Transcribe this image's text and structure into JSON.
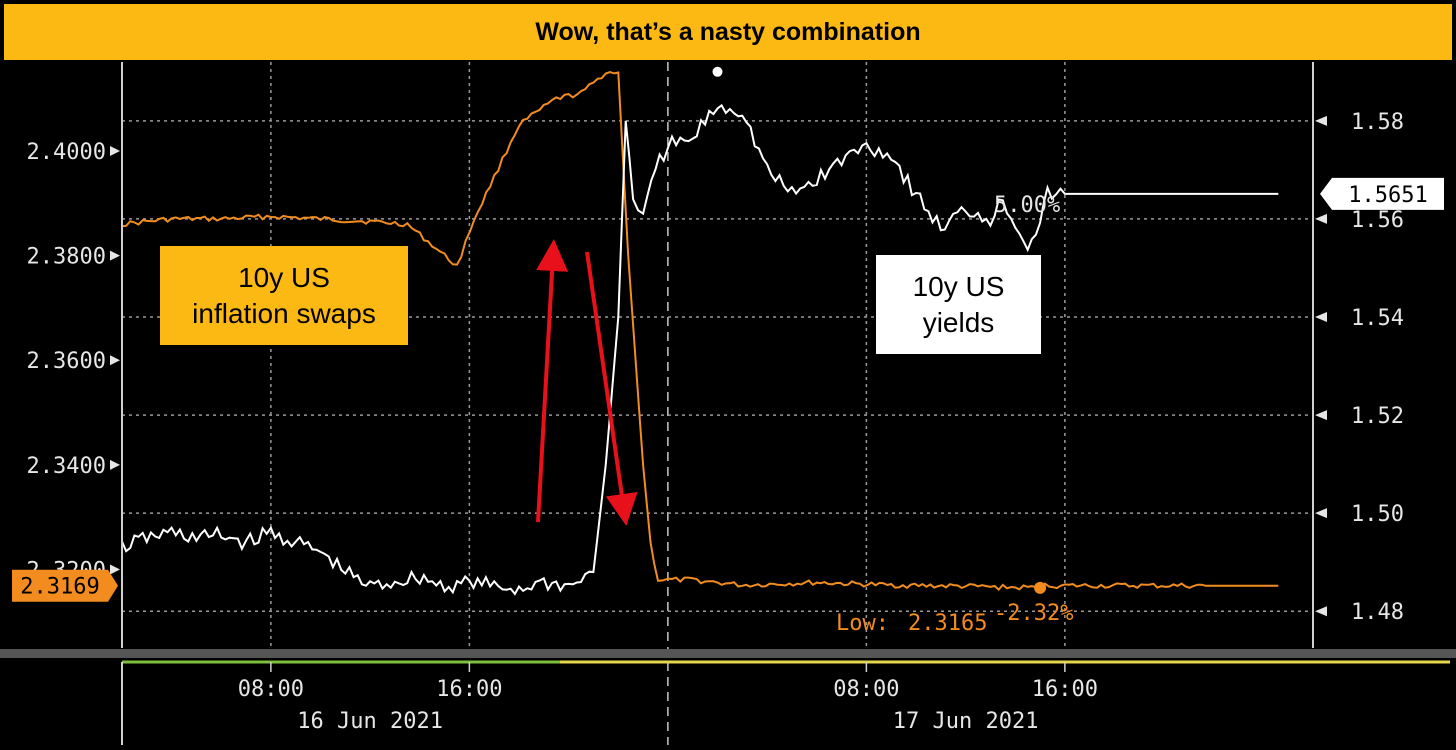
{
  "title": "Wow, that’s a nasty combination",
  "colors": {
    "title_bg": "#fdb913",
    "swaps": "#f28c1e",
    "yields": "#ffffff",
    "arrows": "#e8101b",
    "grid": "#9a9a9a"
  },
  "callouts": {
    "swaps": {
      "line1": "10y US",
      "line2": "inflation swaps"
    },
    "yields": {
      "line1": "10y US",
      "line2": "yields"
    }
  },
  "chart_data": {
    "type": "line",
    "title": "Wow, that’s a nasty combination",
    "x_unit": "hours since 16 Jun 2021 00:00",
    "x_ticks": [
      {
        "x": 8,
        "time": "08:00"
      },
      {
        "x": 16,
        "time": "16:00"
      },
      {
        "x": 32,
        "time": "08:00"
      },
      {
        "x": 40,
        "time": "16:00"
      }
    ],
    "date_labels": [
      {
        "x": 12,
        "label": "16 Jun 2021"
      },
      {
        "x": 36,
        "label": "17 Jun 2021"
      }
    ],
    "day_divider_x": 24,
    "xlim": [
      2,
      50
    ],
    "left_axis": {
      "label": "10y US inflation swaps",
      "ylim": [
        2.305,
        2.417
      ],
      "ticks": [
        "2.4000",
        "2.3800",
        "2.3600",
        "2.3400",
        "2.3200"
      ],
      "tick_values": [
        2.4,
        2.38,
        2.36,
        2.34,
        2.32
      ],
      "last_value_label": "2.3169",
      "last_value": 2.3169
    },
    "right_axis": {
      "label": "10y US yields",
      "ylim": [
        1.4725,
        1.592
      ],
      "ticks": [
        "1.58",
        "1.56",
        "1.54",
        "1.52",
        "1.50",
        "1.48"
      ],
      "tick_values": [
        1.58,
        1.56,
        1.54,
        1.52,
        1.5,
        1.48
      ],
      "last_value_label": "1.5651",
      "last_value": 1.5651
    },
    "series": [
      {
        "name": "10y US inflation swaps",
        "axis": "left",
        "x": [
          2,
          4,
          6,
          8,
          10,
          12,
          13.5,
          14.5,
          15.5,
          16.2,
          17,
          18,
          19.5,
          20.5,
          21.5,
          22,
          22.4,
          22.7,
          23,
          23.3,
          23.6,
          24,
          25,
          27,
          30,
          33,
          36,
          37.5,
          39,
          39.2,
          40,
          46,
          48.6
        ],
        "values": [
          2.386,
          2.387,
          2.387,
          2.3875,
          2.387,
          2.3865,
          2.386,
          2.382,
          2.378,
          2.387,
          2.395,
          2.405,
          2.41,
          2.411,
          2.415,
          2.415,
          2.38,
          2.36,
          2.34,
          2.325,
          2.318,
          2.318,
          2.318,
          2.317,
          2.3175,
          2.317,
          2.3168,
          2.3166,
          2.3165,
          2.3169,
          2.3169,
          2.3169,
          2.3169
        ]
      },
      {
        "name": "10y US yields",
        "axis": "right",
        "x": [
          2,
          3,
          4,
          5,
          6,
          7,
          8,
          10,
          11,
          12,
          13,
          14,
          15,
          16,
          17,
          18,
          19,
          20,
          21,
          21.5,
          22,
          22.3,
          22.6,
          23,
          23.5,
          24,
          25,
          25.5,
          26,
          27,
          28,
          29,
          30,
          31,
          32,
          33,
          34,
          35,
          36,
          37,
          37.5,
          38,
          38.5,
          39,
          39.3,
          40,
          48.6
        ],
        "values": [
          1.493,
          1.495,
          1.496,
          1.495,
          1.4955,
          1.494,
          1.496,
          1.492,
          1.488,
          1.485,
          1.486,
          1.487,
          1.485,
          1.486,
          1.485,
          1.4845,
          1.486,
          1.485,
          1.488,
          1.51,
          1.54,
          1.58,
          1.565,
          1.56,
          1.57,
          1.575,
          1.576,
          1.58,
          1.583,
          1.582,
          1.57,
          1.565,
          1.568,
          1.572,
          1.575,
          1.573,
          1.565,
          1.558,
          1.562,
          1.56,
          1.564,
          1.559,
          1.555,
          1.559,
          1.5651,
          1.5651,
          1.5651
        ]
      }
    ],
    "annotations": [
      {
        "text": "5.00%",
        "series": "10y US yields"
      },
      {
        "text": "Low:",
        "series": "10y US inflation swaps"
      },
      {
        "text": "2.3165",
        "series": "10y US inflation swaps"
      },
      {
        "text": "-2.32%",
        "series": "10y US inflation swaps"
      }
    ],
    "arrows": [
      {
        "direction": "up",
        "from_x": 21.5,
        "to_x": 22.1
      },
      {
        "direction": "down",
        "from_x": 22.6,
        "to_x": 23.7
      }
    ]
  }
}
